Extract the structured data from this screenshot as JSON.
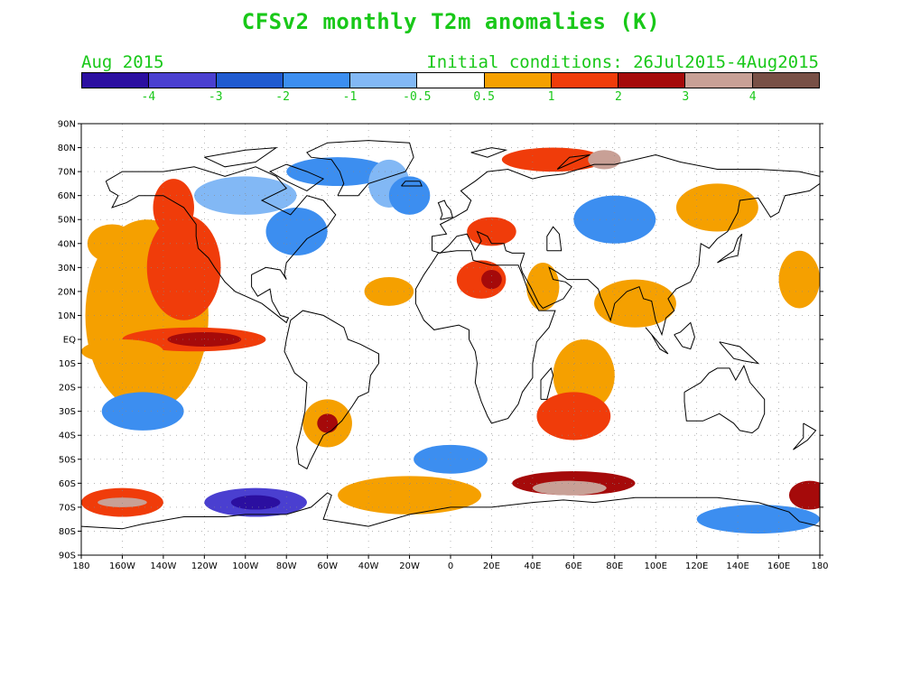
{
  "title": "CFSv2 monthly T2m anomalies (K)",
  "period_label": "Aug 2015",
  "initial_conditions": "Initial conditions: 26Jul2015-4Aug2015",
  "colorbar": {
    "colors": [
      "#2b0fa0",
      "#4a3fd0",
      "#1f5ad0",
      "#3c8ef0",
      "#82b8f5",
      "#ffffff",
      "#f5a000",
      "#f03c0a",
      "#a50a0a",
      "#c8a096",
      "#785046"
    ],
    "labels": [
      "-4",
      "-3",
      "-2",
      "-1",
      "-0.5",
      "0.5",
      "1",
      "2",
      "3",
      "4"
    ]
  },
  "map": {
    "lat_labels": [
      "90N",
      "80N",
      "70N",
      "60N",
      "50N",
      "40N",
      "30N",
      "20N",
      "10N",
      "EQ",
      "10S",
      "20S",
      "30S",
      "40S",
      "50S",
      "60S",
      "70S",
      "80S",
      "90S"
    ],
    "lon_labels": [
      "180",
      "160W",
      "140W",
      "120W",
      "100W",
      "80W",
      "60W",
      "40W",
      "20W",
      "0",
      "20E",
      "40E",
      "60E",
      "80E",
      "100E",
      "120E",
      "140E",
      "160E",
      "180"
    ],
    "anomaly_regions": [
      {
        "lon": -148,
        "lat": 10,
        "rx": 30,
        "ry": 40,
        "level": 6
      },
      {
        "lon": -130,
        "lat": 30,
        "rx": 18,
        "ry": 22,
        "level": 7
      },
      {
        "lon": -125,
        "lat": 0,
        "rx": 35,
        "ry": 5,
        "level": 7
      },
      {
        "lon": -120,
        "lat": 0,
        "rx": 18,
        "ry": 3,
        "level": 8
      },
      {
        "lon": -135,
        "lat": 55,
        "rx": 10,
        "ry": 12,
        "level": 7
      },
      {
        "lon": -165,
        "lat": 40,
        "rx": 12,
        "ry": 8,
        "level": 6
      },
      {
        "lon": -100,
        "lat": 60,
        "rx": 25,
        "ry": 8,
        "level": 4
      },
      {
        "lon": -75,
        "lat": 45,
        "rx": 15,
        "ry": 10,
        "level": 3
      },
      {
        "lon": -55,
        "lat": 70,
        "rx": 25,
        "ry": 6,
        "level": 3
      },
      {
        "lon": -30,
        "lat": 65,
        "rx": 10,
        "ry": 10,
        "level": 4
      },
      {
        "lon": -30,
        "lat": 20,
        "rx": 12,
        "ry": 6,
        "level": 6
      },
      {
        "lon": 20,
        "lat": 45,
        "rx": 12,
        "ry": 6,
        "level": 7
      },
      {
        "lon": 15,
        "lat": 25,
        "rx": 12,
        "ry": 8,
        "level": 7
      },
      {
        "lon": 20,
        "lat": 25,
        "rx": 5,
        "ry": 4,
        "level": 8
      },
      {
        "lon": 45,
        "lat": 22,
        "rx": 8,
        "ry": 10,
        "level": 6
      },
      {
        "lon": 50,
        "lat": 75,
        "rx": 25,
        "ry": 5,
        "level": 7
      },
      {
        "lon": 75,
        "lat": 75,
        "rx": 8,
        "ry": 4,
        "level": 9
      },
      {
        "lon": 80,
        "lat": 50,
        "rx": 20,
        "ry": 10,
        "level": 3
      },
      {
        "lon": 130,
        "lat": 55,
        "rx": 20,
        "ry": 10,
        "level": 6
      },
      {
        "lon": 170,
        "lat": 25,
        "rx": 10,
        "ry": 12,
        "level": 6
      },
      {
        "lon": 65,
        "lat": -15,
        "rx": 15,
        "ry": 15,
        "level": 6
      },
      {
        "lon": 60,
        "lat": -32,
        "rx": 18,
        "ry": 10,
        "level": 7
      },
      {
        "lon": 60,
        "lat": -60,
        "rx": 30,
        "ry": 5,
        "level": 8
      },
      {
        "lon": 58,
        "lat": -62,
        "rx": 18,
        "ry": 3,
        "level": 9
      },
      {
        "lon": -60,
        "lat": -35,
        "rx": 12,
        "ry": 10,
        "level": 6
      },
      {
        "lon": -60,
        "lat": -35,
        "rx": 5,
        "ry": 4,
        "level": 8
      },
      {
        "lon": -20,
        "lat": -65,
        "rx": 35,
        "ry": 8,
        "level": 6
      },
      {
        "lon": -95,
        "lat": -68,
        "rx": 25,
        "ry": 6,
        "level": 1
      },
      {
        "lon": -95,
        "lat": -68,
        "rx": 12,
        "ry": 3,
        "level": 0
      },
      {
        "lon": -160,
        "lat": -68,
        "rx": 20,
        "ry": 6,
        "level": 7
      },
      {
        "lon": -160,
        "lat": -68,
        "rx": 12,
        "ry": 2,
        "level": 9
      },
      {
        "lon": 175,
        "lat": -65,
        "rx": 10,
        "ry": 6,
        "level": 8
      },
      {
        "lon": 150,
        "lat": -75,
        "rx": 30,
        "ry": 6,
        "level": 3
      },
      {
        "lon": -150,
        "lat": -30,
        "rx": 20,
        "ry": 8,
        "level": 3
      },
      {
        "lon": 0,
        "lat": -50,
        "rx": 18,
        "ry": 6,
        "level": 3
      },
      {
        "lon": -20,
        "lat": 60,
        "rx": 10,
        "ry": 8,
        "level": 3
      },
      {
        "lon": 90,
        "lat": 15,
        "rx": 20,
        "ry": 10,
        "level": 6
      },
      {
        "lon": -160,
        "lat": -5,
        "rx": 20,
        "ry": 5,
        "level": 6
      }
    ]
  }
}
